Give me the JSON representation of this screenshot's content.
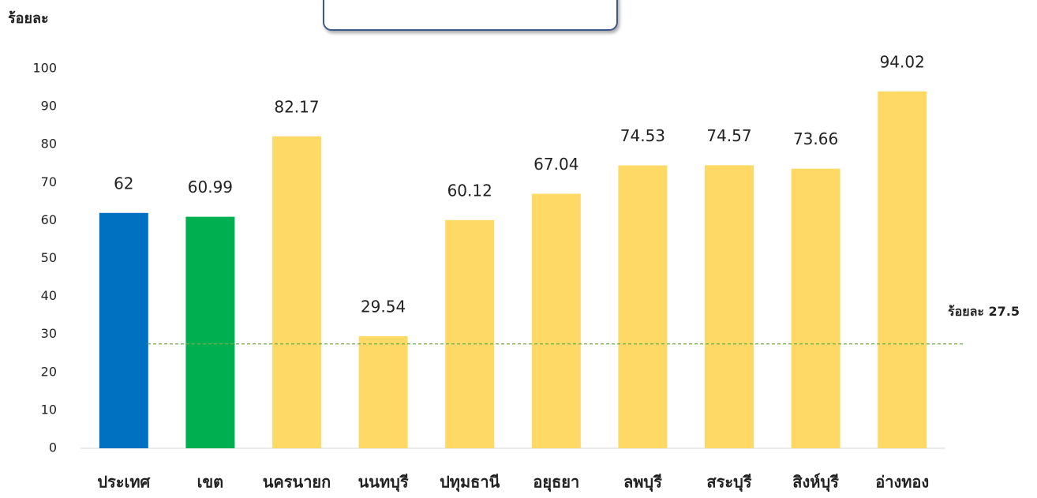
{
  "chart_data": {
    "type": "bar",
    "y_label": "ร้อยละ",
    "categories": [
      "ประเทศ",
      "เขต",
      "นครนายก",
      "นนทบุรี",
      "ปทุมธานี",
      "อยุธยา",
      "ลพบุรี",
      "สระบุรี",
      "สิงห์บุรี",
      "อ่างทอง"
    ],
    "values": [
      62,
      60.99,
      82.17,
      29.54,
      60.12,
      67.04,
      74.53,
      74.57,
      73.66,
      94.02
    ],
    "colors": [
      "#0070c0",
      "#00b050",
      "#ffd966",
      "#ffd966",
      "#ffd966",
      "#ffd966",
      "#ffd966",
      "#ffd966",
      "#ffd966",
      "#ffd966"
    ],
    "ylim": [
      0,
      100
    ],
    "yticks": [
      0,
      10,
      20,
      30,
      40,
      50,
      60,
      70,
      80,
      90,
      100
    ],
    "reference_line": {
      "value": 27.5,
      "label": "ร้อยละ 27.5",
      "color": "#70ad47"
    }
  }
}
